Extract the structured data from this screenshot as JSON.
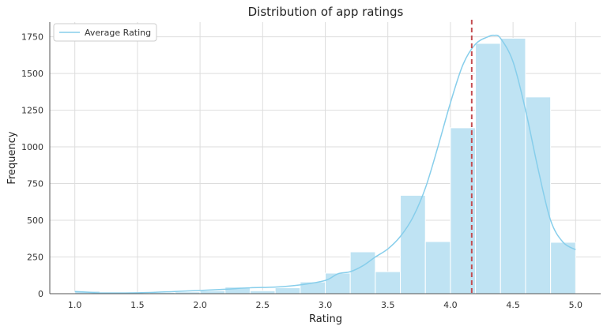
{
  "chart_data": {
    "type": "bar",
    "title": "Distribution of app ratings",
    "xlabel": "Rating",
    "ylabel": "Frequency",
    "xlim": [
      0.8,
      5.2
    ],
    "ylim": [
      0,
      1850
    ],
    "xticks": [
      "1.0",
      "1.5",
      "2.0",
      "2.5",
      "3.0",
      "3.5",
      "4.0",
      "4.5",
      "5.0"
    ],
    "yticks": [
      "0",
      "250",
      "500",
      "750",
      "1000",
      "1250",
      "1500",
      "1750"
    ],
    "grid": true,
    "legend": {
      "entries": [
        "Average Rating"
      ],
      "placement": "top-left"
    },
    "bins": [
      {
        "x0": 1.0,
        "x1": 1.2,
        "value": 17
      },
      {
        "x0": 1.2,
        "x1": 1.4,
        "value": 3
      },
      {
        "x0": 1.4,
        "x1": 1.6,
        "value": 4
      },
      {
        "x0": 1.6,
        "x1": 1.8,
        "value": 8
      },
      {
        "x0": 1.8,
        "x1": 2.0,
        "value": 12
      },
      {
        "x0": 2.0,
        "x1": 2.2,
        "value": 20
      },
      {
        "x0": 2.2,
        "x1": 2.4,
        "value": 45
      },
      {
        "x0": 2.4,
        "x1": 2.6,
        "value": 20
      },
      {
        "x0": 2.6,
        "x1": 2.8,
        "value": 40
      },
      {
        "x0": 2.8,
        "x1": 3.0,
        "value": 80
      },
      {
        "x0": 3.0,
        "x1": 3.2,
        "value": 140
      },
      {
        "x0": 3.2,
        "x1": 3.4,
        "value": 285
      },
      {
        "x0": 3.4,
        "x1": 3.6,
        "value": 150
      },
      {
        "x0": 3.6,
        "x1": 3.8,
        "value": 670
      },
      {
        "x0": 3.8,
        "x1": 4.0,
        "value": 355
      },
      {
        "x0": 4.0,
        "x1": 4.2,
        "value": 1130
      },
      {
        "x0": 4.2,
        "x1": 4.4,
        "value": 1705
      },
      {
        "x0": 4.4,
        "x1": 4.6,
        "value": 1740
      },
      {
        "x0": 4.6,
        "x1": 4.8,
        "value": 1340
      },
      {
        "x0": 4.8,
        "x1": 5.0,
        "value": 350
      }
    ],
    "kde_curve": {
      "name": "Average Rating",
      "x": [
        1.0,
        1.1,
        1.2,
        1.4,
        1.6,
        1.8,
        2.0,
        2.2,
        2.4,
        2.6,
        2.8,
        3.0,
        3.1,
        3.2,
        3.3,
        3.4,
        3.5,
        3.6,
        3.7,
        3.8,
        3.9,
        4.0,
        4.1,
        4.2,
        4.3,
        4.35,
        4.4,
        4.5,
        4.6,
        4.7,
        4.8,
        4.9,
        5.0
      ],
      "y": [
        15,
        10,
        5,
        5,
        8,
        15,
        22,
        30,
        40,
        45,
        60,
        90,
        135,
        150,
        190,
        250,
        305,
        390,
        520,
        720,
        1000,
        1300,
        1560,
        1700,
        1750,
        1760,
        1740,
        1580,
        1250,
        850,
        500,
        350,
        300
      ]
    },
    "mean_line": {
      "x": 4.17,
      "style": "dashed"
    },
    "colors": {
      "bars": "#bfe3f3",
      "curve": "#87ceeb",
      "mean_line": "#c44e52",
      "grid": "#dddddd",
      "spine": "#555555"
    }
  }
}
